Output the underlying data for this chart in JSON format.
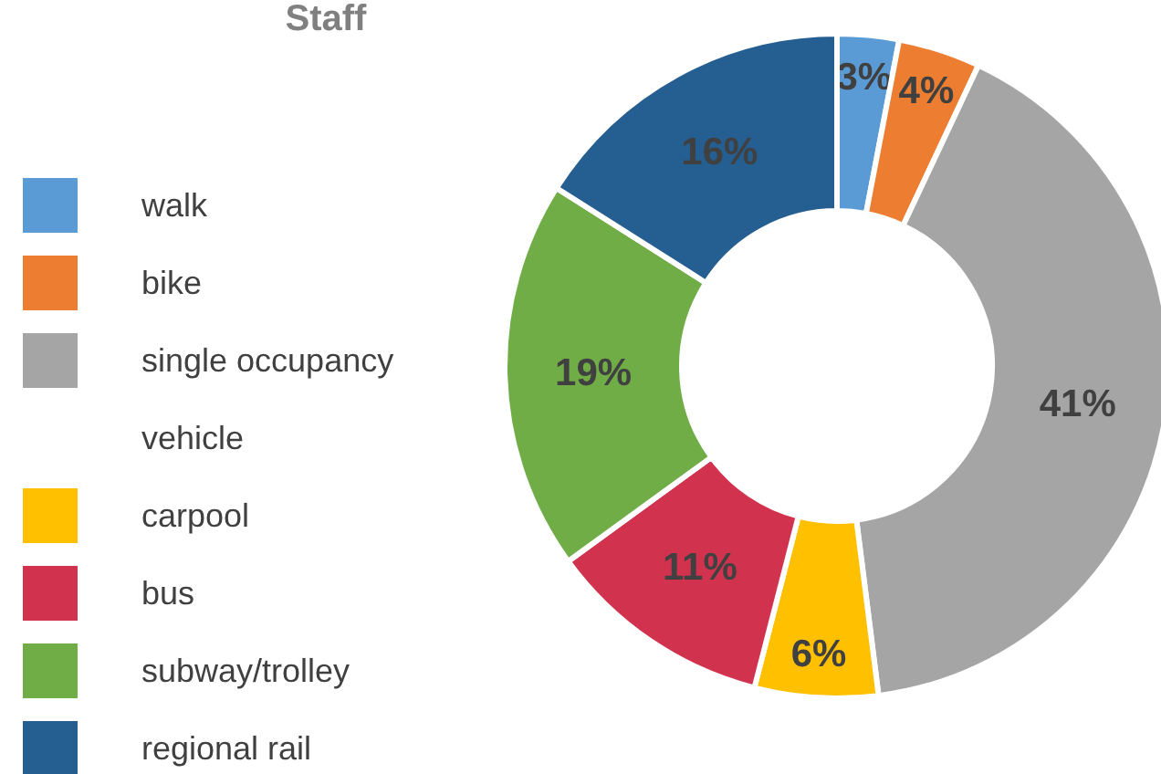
{
  "chart_data": {
    "type": "donut",
    "title": "Staff",
    "categories": [
      "walk",
      "bike",
      "single occupancy vehicle",
      "carpool",
      "bus",
      "subway/trolley",
      "regional rail"
    ],
    "values": [
      3,
      4,
      41,
      6,
      11,
      19,
      16
    ],
    "colors": [
      "#5b9bd5",
      "#ed7d31",
      "#a5a5a5",
      "#ffc000",
      "#d1334f",
      "#70ad47",
      "#255e91"
    ],
    "value_labels": [
      "3%",
      "4%",
      "41%",
      "6%",
      "11%",
      "19%",
      "16%"
    ],
    "legend": "left"
  }
}
